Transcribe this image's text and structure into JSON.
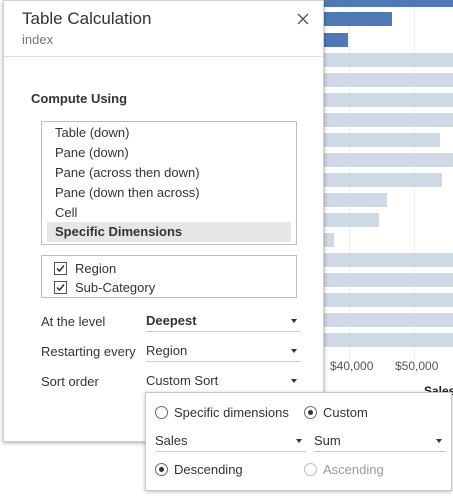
{
  "dialog": {
    "title": "Table Calculation",
    "subtitle": "index",
    "close_icon": "close-icon"
  },
  "compute_using": {
    "title": "Compute Using",
    "options": [
      "Table (down)",
      "Pane (down)",
      "Pane (across then down)",
      "Pane (down then across)",
      "Cell",
      "Specific Dimensions"
    ],
    "selected": "Specific Dimensions"
  },
  "dimensions": [
    {
      "label": "Region",
      "checked": true
    },
    {
      "label": "Sub-Category",
      "checked": true
    }
  ],
  "fields": {
    "at_level_label": "At the level",
    "at_level_value": "Deepest",
    "restarting_label": "Restarting every",
    "restarting_value": "Region",
    "sort_label": "Sort order",
    "sort_value": "Custom Sort"
  },
  "sort_popover": {
    "specific_label": "Specific dimensions",
    "custom_label": "Custom",
    "selected_mode": "Custom",
    "field_value": "Sales",
    "aggregation_value": "Sum",
    "descending_label": "Descending",
    "ascending_label": "Ascending",
    "selected_order": "Descending"
  },
  "background_chart": {
    "axis_ticks": [
      "$40,000",
      "$50,000"
    ],
    "axis_title": "Sales",
    "colors": {
      "highlight": "#4f79b4",
      "muted": "#cfd9e6"
    }
  }
}
